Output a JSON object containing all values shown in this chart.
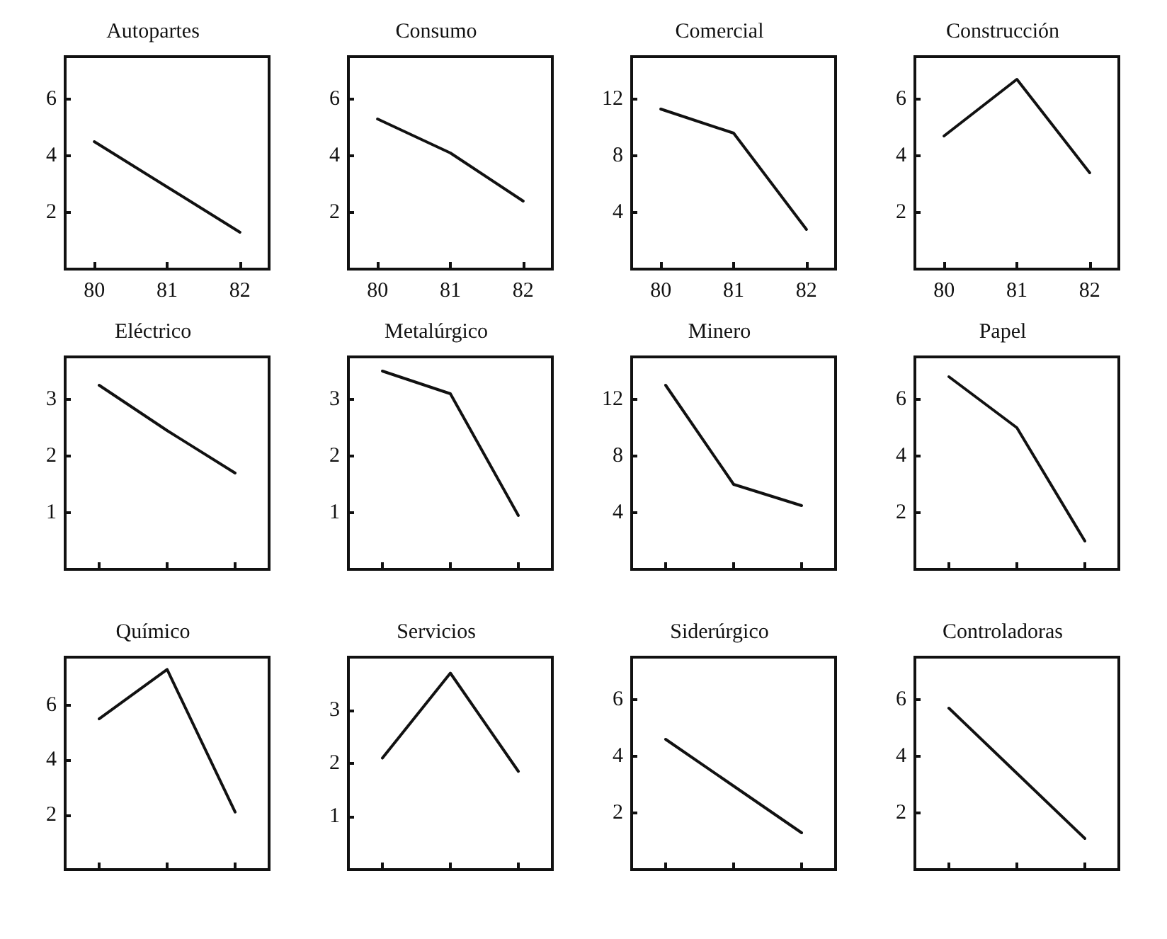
{
  "chart_data": [
    {
      "type": "line",
      "title": "Autopartes",
      "x": [
        80,
        81,
        82
      ],
      "values": [
        4.5,
        2.9,
        1.3
      ],
      "color": "#111111",
      "xlim": [
        79.6,
        82.4
      ],
      "xticks": [
        80,
        81,
        82
      ],
      "ylim": [
        0,
        7.5
      ],
      "yticks": [
        2,
        4,
        6
      ],
      "marker": "none"
    },
    {
      "type": "line",
      "title": "Consumo",
      "x": [
        80,
        81,
        82
      ],
      "values": [
        5.3,
        4.1,
        2.4
      ],
      "color": "#111111",
      "xlim": [
        79.6,
        82.4
      ],
      "xticks": [
        80,
        81,
        82
      ],
      "ylim": [
        0,
        7.5
      ],
      "yticks": [
        2,
        4,
        6
      ],
      "marker": "none"
    },
    {
      "type": "line",
      "title": "Comercial",
      "x": [
        80,
        81,
        82
      ],
      "values": [
        11.3,
        9.6,
        2.8
      ],
      "color": "#111111",
      "xlim": [
        79.6,
        82.4
      ],
      "xticks": [
        80,
        81,
        82
      ],
      "ylim": [
        0,
        15
      ],
      "yticks": [
        4,
        8,
        12
      ],
      "marker": "none"
    },
    {
      "type": "line",
      "title": "Construcción",
      "x": [
        80,
        81,
        82
      ],
      "values": [
        4.7,
        6.7,
        3.4
      ],
      "color": "#111111",
      "xlim": [
        79.6,
        82.4
      ],
      "xticks": [
        80,
        81,
        82
      ],
      "ylim": [
        0,
        7.5
      ],
      "yticks": [
        2,
        4,
        6
      ],
      "marker": "none"
    },
    {
      "type": "line",
      "title": "Eléctrico",
      "categories": [
        null,
        null,
        null
      ],
      "values": [
        3.25,
        2.45,
        1.7
      ],
      "color": "#111111",
      "ylim": [
        0,
        3.75
      ],
      "yticks": [
        1,
        2,
        3
      ],
      "tick_labels": "y",
      "marker": "none"
    },
    {
      "type": "line",
      "title": "Metalúrgico",
      "categories": [
        null,
        null,
        null
      ],
      "values": [
        3.5,
        3.1,
        0.95
      ],
      "color": "#111111",
      "ylim": [
        0,
        3.75
      ],
      "yticks": [
        1,
        2,
        3
      ],
      "tick_labels": "y",
      "marker": "none"
    },
    {
      "type": "line",
      "title": "Minero",
      "categories": [
        null,
        null,
        null
      ],
      "values": [
        13,
        6,
        4.5
      ],
      "color": "#111111",
      "ylim": [
        0,
        15
      ],
      "yticks": [
        4,
        8,
        12
      ],
      "tick_labels": "y",
      "marker": "none"
    },
    {
      "type": "line",
      "title": "Papel",
      "categories": [
        null,
        null,
        null
      ],
      "values": [
        6.8,
        5.0,
        1.0
      ],
      "color": "#111111",
      "ylim": [
        0,
        7.5
      ],
      "yticks": [
        2,
        4,
        6
      ],
      "tick_labels": "y",
      "marker": "none"
    },
    {
      "type": "line",
      "title": "Químico",
      "categories": [
        null,
        null,
        null
      ],
      "values": [
        5.5,
        7.3,
        2.1
      ],
      "color": "#111111",
      "ylim": [
        0,
        7.75
      ],
      "yticks": [
        2,
        4,
        6
      ],
      "tick_labels": "y",
      "marker": "none"
    },
    {
      "type": "line",
      "title": "Servicios",
      "categories": [
        null,
        null,
        null
      ],
      "values": [
        2.1,
        3.7,
        1.85
      ],
      "color": "#111111",
      "ylim": [
        0,
        4
      ],
      "yticks": [
        1,
        2,
        3
      ],
      "tick_labels": "y",
      "marker": "none"
    },
    {
      "type": "line",
      "title": "Siderúrgico",
      "categories": [
        null,
        null,
        null
      ],
      "values": [
        4.6,
        2.95,
        1.3
      ],
      "color": "#111111",
      "ylim": [
        0,
        7.5
      ],
      "yticks": [
        2,
        4,
        6
      ],
      "tick_labels": "y",
      "marker": "none"
    },
    {
      "type": "line",
      "title": "Controladoras",
      "categories": [
        null,
        null,
        null
      ],
      "values": [
        5.7,
        3.4,
        1.1
      ],
      "color": "#111111",
      "ylim": [
        0,
        7.5
      ],
      "yticks": [
        2,
        4,
        6
      ],
      "tick_labels": "y",
      "marker": "none"
    }
  ]
}
